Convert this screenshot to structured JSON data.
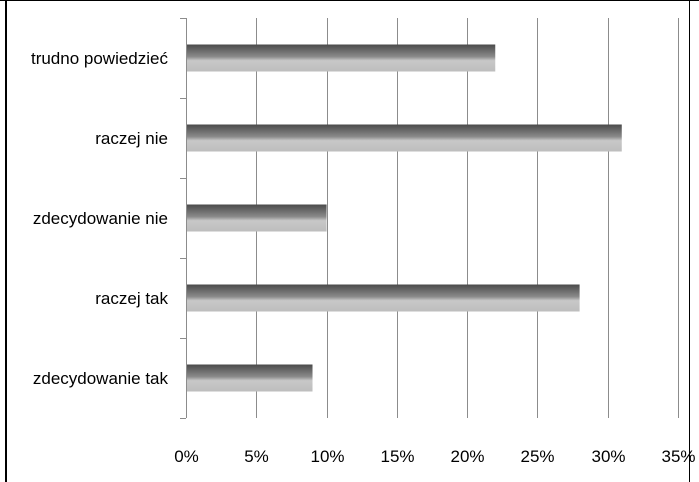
{
  "chart_data": {
    "type": "bar",
    "orientation": "horizontal",
    "categories": [
      "zdecydowanie tak",
      "raczej tak",
      "zdecydowanie nie",
      "raczej nie",
      "trudno powiedzieć"
    ],
    "values": [
      9,
      28,
      10,
      31,
      22
    ],
    "xlim": [
      0,
      35
    ],
    "xticks": [
      "0%",
      "5%",
      "10%",
      "15%",
      "20%",
      "25%",
      "30%",
      "35%"
    ],
    "grid": "vertical",
    "legend": "none",
    "colors": {
      "bar_light": "#c4c4c4",
      "bar_dark": "#5a5a5a",
      "grid": "#8c8c8c",
      "axis": "#8c8c8c",
      "text": "#000000"
    }
  }
}
